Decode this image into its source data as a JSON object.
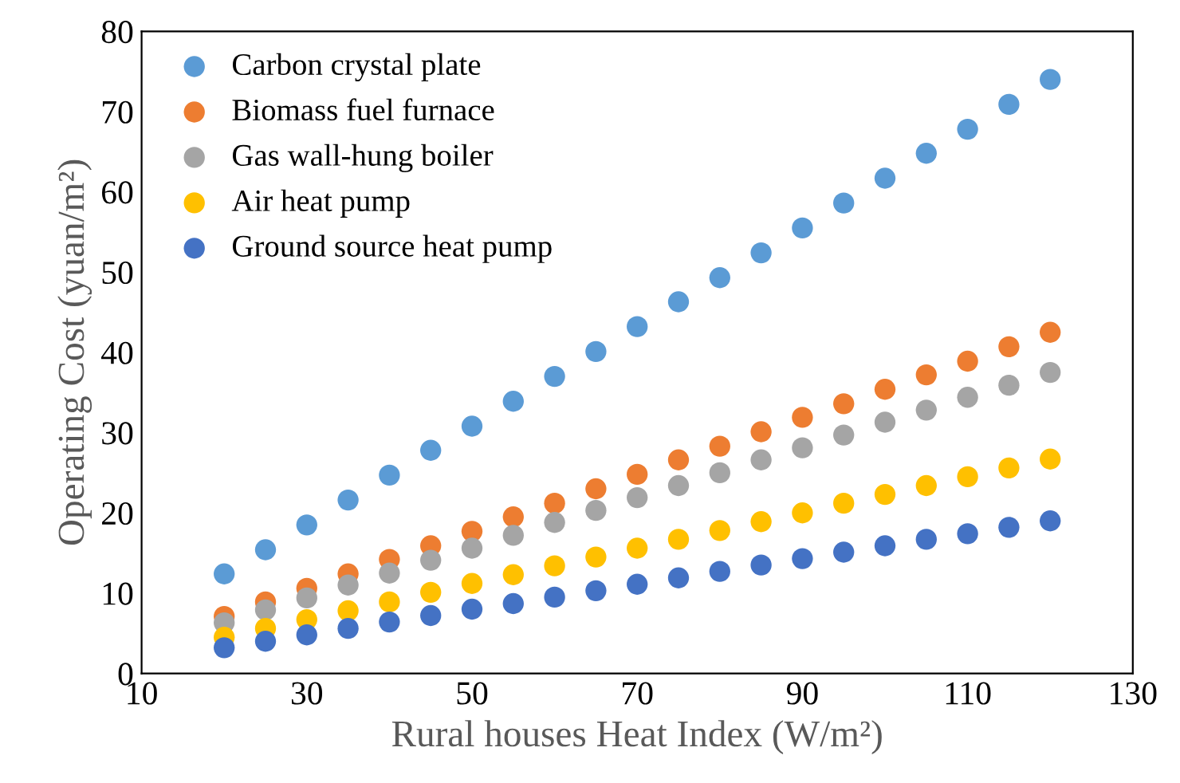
{
  "chart_data": {
    "type": "scatter",
    "xlabel": "Rural houses Heat Index (W/m²)",
    "ylabel": "Operating Cost (yuan/m²)",
    "x": [
      20,
      25,
      30,
      35,
      40,
      45,
      50,
      55,
      60,
      65,
      70,
      75,
      80,
      85,
      90,
      95,
      100,
      105,
      110,
      115,
      120
    ],
    "xlim": [
      10,
      130
    ],
    "xticks": [
      10,
      30,
      50,
      70,
      90,
      110,
      130
    ],
    "ylim": [
      0,
      80
    ],
    "yticks": [
      0,
      10,
      20,
      30,
      40,
      50,
      60,
      70,
      80
    ],
    "grid": false,
    "legend": "top left",
    "marker": "circle",
    "series": [
      {
        "name": "Carbon crystal plate",
        "color": "#5b9bd5",
        "values": [
          12.4,
          15.4,
          18.5,
          21.6,
          24.7,
          27.8,
          30.8,
          33.9,
          37.0,
          40.1,
          43.2,
          46.3,
          49.3,
          52.4,
          55.5,
          58.6,
          61.7,
          64.8,
          67.8,
          70.9,
          74.0
        ]
      },
      {
        "name": "Biomass fuel furnace",
        "color": "#ed7d31",
        "values": [
          7.1,
          8.9,
          10.6,
          12.4,
          14.2,
          15.9,
          17.7,
          19.5,
          21.2,
          23.0,
          24.8,
          26.6,
          28.3,
          30.1,
          31.9,
          33.6,
          35.4,
          37.2,
          38.9,
          40.7,
          42.5
        ]
      },
      {
        "name": "Gas wall-hung boiler",
        "color": "#a5a5a5",
        "values": [
          6.3,
          7.9,
          9.4,
          11.0,
          12.5,
          14.1,
          15.6,
          17.2,
          18.8,
          20.3,
          21.9,
          23.4,
          25.0,
          26.6,
          28.1,
          29.7,
          31.3,
          32.8,
          34.4,
          35.9,
          37.5
        ]
      },
      {
        "name": "Air heat pump",
        "color": "#ffc000",
        "values": [
          4.5,
          5.6,
          6.7,
          7.8,
          8.9,
          10.1,
          11.2,
          12.3,
          13.4,
          14.5,
          15.6,
          16.7,
          17.8,
          18.9,
          20.0,
          21.2,
          22.3,
          23.4,
          24.5,
          25.6,
          26.7
        ]
      },
      {
        "name": "Ground source heat pump",
        "color": "#4472c4",
        "values": [
          3.2,
          4.0,
          4.8,
          5.6,
          6.4,
          7.2,
          8.0,
          8.7,
          9.5,
          10.3,
          11.1,
          11.9,
          12.7,
          13.5,
          14.3,
          15.1,
          15.9,
          16.7,
          17.4,
          18.2,
          19.0
        ]
      }
    ]
  }
}
